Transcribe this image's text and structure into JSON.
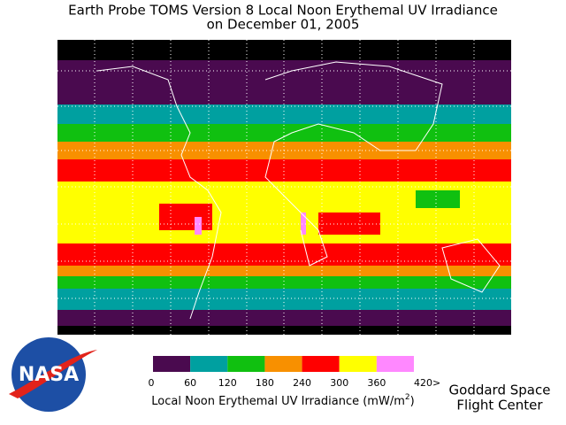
{
  "title": [
    "Earth Probe TOMS Version 8 Local Noon Erythemal UV Irradiance",
    "on December 01, 2005"
  ],
  "legend": {
    "label": "Local Noon Erythemal UV Irradiance (mW/m",
    "label_sup": "2",
    "label_end": ")",
    "ticks": [
      0,
      60,
      120,
      180,
      240,
      300,
      360,
      {
        "value": 420,
        "label": "420>"
      }
    ],
    "colors": [
      "#4a0a4f",
      "#00a0a0",
      "#10c010",
      "#f89000",
      "#ff0000",
      "#ffff00",
      "#ff88ff"
    ]
  },
  "logo": "NASA",
  "credit": [
    "Goddard Space",
    "Flight Center"
  ]
}
